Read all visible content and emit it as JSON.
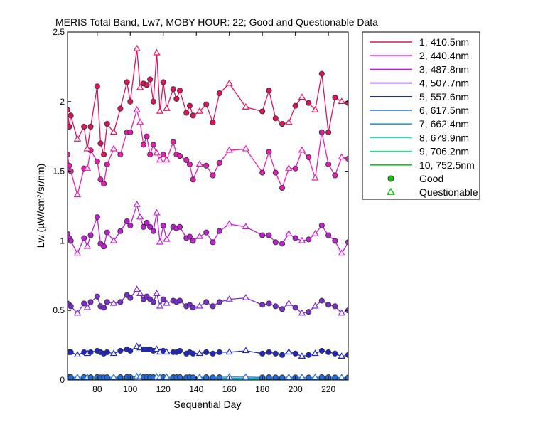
{
  "figure": {
    "background": "#ffffff"
  },
  "chart_data": {
    "type": "line",
    "title": "MERIS Total Band,  Lw7, MOBY HOUR: 22;  Good and Questionable Data",
    "xlabel": "Sequential Day",
    "ylabel": "Lw (µW/cm²/sr/nm)",
    "xlim": [
      62,
      232
    ],
    "ylim": [
      0,
      2.5
    ],
    "xticks": [
      80,
      100,
      120,
      140,
      160,
      180,
      200,
      220
    ],
    "yticks": [
      0,
      0.5,
      1,
      1.5,
      2,
      2.5
    ],
    "ytick_labels": [
      "0",
      "0.5",
      "1",
      "1.5",
      "2",
      "2.5"
    ],
    "grid": false,
    "legend_position": "outside-right",
    "marker_legend": [
      {
        "label": "Good",
        "marker": "circle",
        "color": "#00cc00"
      },
      {
        "label": "Questionable",
        "marker": "triangle",
        "color": "#00cc00"
      }
    ],
    "x": [
      62,
      63,
      64,
      68,
      72,
      74,
      76,
      80,
      82,
      84,
      86,
      90,
      94,
      98,
      100,
      104,
      106,
      108,
      110,
      112,
      114,
      116,
      118,
      120,
      122,
      126,
      128,
      130,
      134,
      136,
      138,
      142,
      146,
      150,
      154,
      160,
      170,
      180,
      184,
      188,
      192,
      196,
      200,
      204,
      208,
      212,
      216,
      220,
      224,
      228,
      232
    ],
    "quality": [
      "G",
      "G",
      "G",
      "Q",
      "G",
      "Q",
      "G",
      "G",
      "G",
      "G",
      "G",
      "Q",
      "G",
      "G",
      "G",
      "Q",
      "Q",
      "G",
      "G",
      "G",
      "G",
      "Q",
      "Q",
      "G",
      "Q",
      "G",
      "G",
      "G",
      "G",
      "G",
      "G",
      "Q",
      "G",
      "G",
      "G",
      "Q",
      "Q",
      "G",
      "G",
      "G",
      "G",
      "Q",
      "G",
      "Q",
      "G",
      "Q",
      "G",
      "G",
      "G",
      "Q",
      "G"
    ],
    "series": [
      {
        "name": "1, 410.5nm",
        "color": "#e0115f",
        "values": [
          1.94,
          1.82,
          1.9,
          1.73,
          1.82,
          1.66,
          1.82,
          2.11,
          1.7,
          1.62,
          1.84,
          1.78,
          1.95,
          2.14,
          2.0,
          2.38,
          2.1,
          2.13,
          2.12,
          2.16,
          2.0,
          2.35,
          1.93,
          2.14,
          1.95,
          2.09,
          2.02,
          2.08,
          1.92,
          1.97,
          1.9,
          1.93,
          1.98,
          1.85,
          2.06,
          2.13,
          1.96,
          1.93,
          2.08,
          1.88,
          1.84,
          1.85,
          1.97,
          2.03,
          1.99,
          1.94,
          2.2,
          1.78,
          2.03,
          2.0,
          1.99
        ]
      },
      {
        "name": "2, 440.4nm",
        "color": "#e81cb4",
        "values": [
          1.62,
          1.54,
          1.5,
          1.33,
          1.52,
          1.52,
          1.65,
          1.57,
          1.44,
          1.41,
          1.55,
          1.66,
          1.62,
          1.78,
          1.78,
          1.94,
          1.85,
          1.69,
          1.75,
          1.62,
          1.69,
          1.63,
          1.58,
          1.62,
          1.58,
          1.71,
          1.62,
          1.61,
          1.58,
          1.55,
          1.44,
          1.55,
          1.54,
          1.47,
          1.56,
          1.65,
          1.66,
          1.49,
          1.64,
          1.49,
          1.38,
          1.52,
          1.52,
          1.65,
          1.6,
          1.45,
          1.78,
          1.55,
          1.47,
          1.6,
          1.59
        ]
      },
      {
        "name": "3, 487.8nm",
        "color": "#c21ed6",
        "values": [
          1.05,
          1.02,
          1.0,
          0.91,
          1.02,
          0.96,
          1.04,
          1.17,
          0.98,
          0.96,
          1.06,
          1.0,
          1.07,
          1.14,
          1.11,
          1.26,
          1.17,
          1.1,
          1.13,
          1.1,
          1.07,
          1.2,
          0.99,
          1.11,
          1.01,
          1.1,
          1.09,
          1.1,
          1.02,
          1.03,
          1.0,
          1.03,
          1.06,
          0.99,
          1.07,
          1.12,
          1.1,
          1.04,
          1.04,
          0.99,
          0.98,
          1.05,
          1.02,
          1.0,
          1.01,
          1.05,
          1.11,
          1.04,
          1.0,
          0.91,
          0.99
        ]
      },
      {
        "name": "4, 507.7nm",
        "color": "#7e2bd6",
        "values": [
          0.55,
          0.54,
          0.53,
          0.48,
          0.55,
          0.52,
          0.56,
          0.6,
          0.53,
          0.52,
          0.56,
          0.55,
          0.56,
          0.61,
          0.59,
          0.65,
          0.62,
          0.58,
          0.6,
          0.58,
          0.56,
          0.62,
          0.53,
          0.58,
          0.55,
          0.57,
          0.56,
          0.57,
          0.53,
          0.54,
          0.52,
          0.53,
          0.56,
          0.53,
          0.56,
          0.58,
          0.59,
          0.54,
          0.55,
          0.53,
          0.51,
          0.55,
          0.52,
          0.48,
          0.49,
          0.53,
          0.57,
          0.54,
          0.53,
          0.48,
          0.5
        ]
      },
      {
        "name": "5, 557.6nm",
        "color": "#1e26c8",
        "values": [
          0.2,
          0.2,
          0.2,
          0.18,
          0.2,
          0.19,
          0.2,
          0.21,
          0.2,
          0.19,
          0.2,
          0.19,
          0.21,
          0.22,
          0.21,
          0.24,
          0.23,
          0.22,
          0.22,
          0.22,
          0.21,
          0.22,
          0.2,
          0.21,
          0.2,
          0.2,
          0.2,
          0.21,
          0.19,
          0.2,
          0.19,
          0.19,
          0.2,
          0.19,
          0.2,
          0.2,
          0.21,
          0.19,
          0.2,
          0.19,
          0.18,
          0.2,
          0.19,
          0.17,
          0.18,
          0.19,
          0.21,
          0.2,
          0.19,
          0.17,
          0.18
        ]
      },
      {
        "name": "6, 617.5nm",
        "color": "#1e6ee6",
        "values": [
          0.02,
          0.02,
          0.02,
          0.018,
          0.021,
          0.019,
          0.02,
          0.022,
          0.019,
          0.019,
          0.02,
          0.019,
          0.021,
          0.022,
          0.021,
          0.024,
          0.023,
          0.021,
          0.022,
          0.021,
          0.02,
          0.022,
          0.019,
          0.021,
          0.02,
          0.02,
          0.02,
          0.021,
          0.019,
          0.02,
          0.019,
          0.019,
          0.02,
          0.019,
          0.02,
          0.021,
          0.021,
          0.019,
          0.02,
          0.019,
          0.018,
          0.02,
          0.019,
          0.018,
          0.018,
          0.019,
          0.021,
          0.02,
          0.019,
          0.017,
          0.018
        ]
      },
      {
        "name": "7, 662.4nm",
        "color": "#1ea0e6",
        "values": [
          0.012,
          0.012,
          0.012,
          0.011,
          0.012,
          0.011,
          0.012,
          0.013,
          0.011,
          0.011,
          0.012,
          0.011,
          0.012,
          0.013,
          0.012,
          0.014,
          0.013,
          0.012,
          0.013,
          0.012,
          0.012,
          0.013,
          0.011,
          0.012,
          0.011,
          0.012,
          0.012,
          0.012,
          0.011,
          0.012,
          0.011,
          0.011,
          0.012,
          0.011,
          0.012,
          0.012,
          0.012,
          0.011,
          0.012,
          0.011,
          0.01,
          0.011,
          0.011,
          0.01,
          0.01,
          0.011,
          0.012,
          0.011,
          0.011,
          0.01,
          0.01
        ]
      },
      {
        "name": "8, 679.9nm",
        "color": "#1ee0c8",
        "values": [
          0.011,
          0.011,
          0.011,
          0.01,
          0.011,
          0.01,
          0.011,
          0.012,
          0.01,
          0.01,
          0.011,
          0.01,
          0.011,
          0.012,
          0.011,
          0.013,
          0.012,
          0.011,
          0.012,
          0.011,
          0.011,
          0.012,
          0.01,
          0.011,
          0.01,
          0.011,
          0.011,
          0.011,
          0.01,
          0.011,
          0.01,
          0.01,
          0.011,
          0.01,
          0.011,
          0.011,
          0.011,
          0.01,
          0.011,
          0.01,
          0.009,
          0.01,
          0.01,
          0.009,
          0.009,
          0.01,
          0.011,
          0.01,
          0.01,
          0.009,
          0.009
        ]
      },
      {
        "name": "9, 706.2nm",
        "color": "#1ee68c",
        "values": [
          0.006,
          0.006,
          0.006,
          0.005,
          0.006,
          0.005,
          0.006,
          0.007,
          0.005,
          0.005,
          0.006,
          0.005,
          0.006,
          0.007,
          0.006,
          0.008,
          0.007,
          0.006,
          0.007,
          0.006,
          0.006,
          0.007,
          0.005,
          0.006,
          0.005,
          0.006,
          0.006,
          0.006,
          0.005,
          0.006,
          0.005,
          0.005,
          0.006,
          0.005,
          0.006,
          0.006,
          0.006,
          0.005,
          0.006,
          0.005,
          0.004,
          0.005,
          0.005,
          0.004,
          0.004,
          0.005,
          0.006,
          0.005,
          0.005,
          0.004,
          0.004
        ]
      },
      {
        "name": "10, 752.5nm",
        "color": "#12c41e",
        "values": [
          0.003,
          0.003,
          0.003,
          0.002,
          0.003,
          0.002,
          0.003,
          0.004,
          0.002,
          0.002,
          0.003,
          0.002,
          0.003,
          0.004,
          0.003,
          0.004,
          0.004,
          0.003,
          0.003,
          0.003,
          0.003,
          0.004,
          0.002,
          0.003,
          0.002,
          0.003,
          0.003,
          0.003,
          0.002,
          0.003,
          0.002,
          0.002,
          0.003,
          0.002,
          0.003,
          0.003,
          0.003,
          0.002,
          0.003,
          0.002,
          0.002,
          0.002,
          0.002,
          0.002,
          0.002,
          0.002,
          0.003,
          0.002,
          0.002,
          0.002,
          0.002
        ]
      }
    ]
  }
}
